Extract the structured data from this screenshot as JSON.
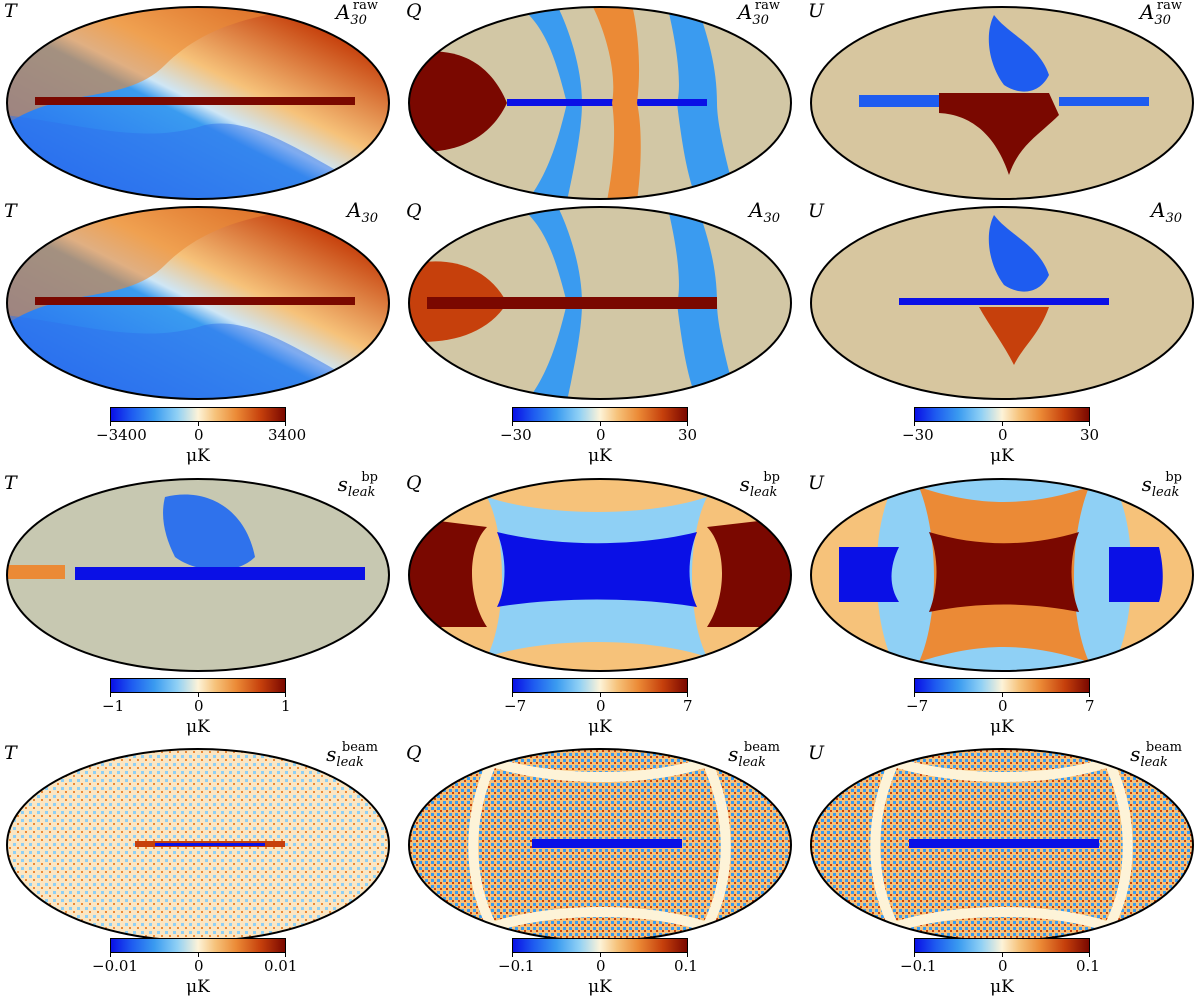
{
  "rows": [
    {
      "panels": [
        {
          "stokes": "T",
          "map_symbol": "A",
          "subscript": "30",
          "superscript": "raw"
        },
        {
          "stokes": "Q",
          "map_symbol": "A",
          "subscript": "30",
          "superscript": "raw"
        },
        {
          "stokes": "U",
          "map_symbol": "A",
          "subscript": "30",
          "superscript": "raw"
        }
      ]
    },
    {
      "panels": [
        {
          "stokes": "T",
          "map_symbol": "A",
          "subscript": "30",
          "superscript": ""
        },
        {
          "stokes": "Q",
          "map_symbol": "A",
          "subscript": "30",
          "superscript": ""
        },
        {
          "stokes": "U",
          "map_symbol": "A",
          "subscript": "30",
          "superscript": ""
        }
      ],
      "colorbars": [
        {
          "min": "−3400",
          "mid": "0",
          "max": "3400",
          "unit": "μK"
        },
        {
          "min": "−30",
          "mid": "0",
          "max": "30",
          "unit": "μK"
        },
        {
          "min": "−30",
          "mid": "0",
          "max": "30",
          "unit": "μK"
        }
      ]
    },
    {
      "panels": [
        {
          "stokes": "T",
          "map_symbol": "s",
          "subscript": "leak",
          "superscript": "bp"
        },
        {
          "stokes": "Q",
          "map_symbol": "s",
          "subscript": "leak",
          "superscript": "bp"
        },
        {
          "stokes": "U",
          "map_symbol": "s",
          "subscript": "leak",
          "superscript": "bp"
        }
      ],
      "colorbars": [
        {
          "min": "−1",
          "mid": "0",
          "max": "1",
          "unit": "μK"
        },
        {
          "min": "−7",
          "mid": "0",
          "max": "7",
          "unit": "μK"
        },
        {
          "min": "−7",
          "mid": "0",
          "max": "7",
          "unit": "μK"
        }
      ]
    },
    {
      "panels": [
        {
          "stokes": "T",
          "map_symbol": "s",
          "subscript": "leak",
          "superscript": "beam"
        },
        {
          "stokes": "Q",
          "map_symbol": "s",
          "subscript": "leak",
          "superscript": "beam"
        },
        {
          "stokes": "U",
          "map_symbol": "s",
          "subscript": "leak",
          "superscript": "beam"
        }
      ],
      "colorbars": [
        {
          "min": "−0.01",
          "mid": "0",
          "max": "0.01",
          "unit": "μK"
        },
        {
          "min": "−0.1",
          "mid": "0",
          "max": "0.1",
          "unit": "μK"
        },
        {
          "min": "−0.1",
          "mid": "0",
          "max": "0.1",
          "unit": "μK"
        }
      ]
    }
  ],
  "colormap": [
    "#0a10e6",
    "#3a9bf0",
    "#fdf3d8",
    "#eb8a36",
    "#7a0800"
  ]
}
